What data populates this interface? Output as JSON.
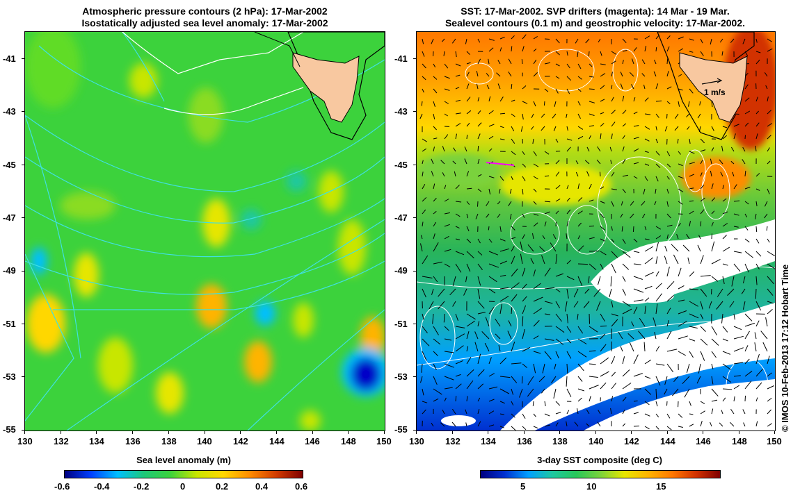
{
  "left_panel": {
    "title_line1": "Atmospheric pressure contours (2 hPa): 17-Mar-2002",
    "title_line2": "Isostatically adjusted sea level anomaly: 17-Mar-2002",
    "colorbar_title": "Sea level anomaly (m)",
    "colorbar_ticks": [
      "-0.6",
      "-0.4",
      "-0.2",
      "0",
      "0.2",
      "0.4",
      "0.6"
    ],
    "colorbar_colors": [
      "#00007f",
      "#0040ff",
      "#00bfff",
      "#1ec878",
      "#3cd23c",
      "#c8e600",
      "#ffd700",
      "#ff8c00",
      "#d23c00",
      "#7f0000"
    ]
  },
  "right_panel": {
    "title_line1": "SST: 17-Mar-2002. SVP drifters (magenta): 14 Mar - 19 Mar.",
    "title_line2": "Sealevel contours (0.1 m) and geostrophic velocity: 17-Mar-2002.",
    "colorbar_title": "3-day SST composite (deg C)",
    "colorbar_ticks": [
      "5",
      "10",
      "15"
    ],
    "colorbar_colors": [
      "#00007f",
      "#0030d0",
      "#00a0ff",
      "#1ec8a0",
      "#28c85a",
      "#7ad23c",
      "#e6e600",
      "#ffb400",
      "#ff7800",
      "#d23200",
      "#7f0000"
    ],
    "velocity_scale_label": "1 m/s",
    "side_credit": "© IMOS 10-Feb-2013 17:12 Hobart Time"
  },
  "axes": {
    "y_ticks": [
      "-41",
      "-43",
      "-45",
      "-47",
      "-49",
      "-51",
      "-53",
      "-55"
    ],
    "x_ticks": [
      "130",
      "132",
      "134",
      "136",
      "138",
      "140",
      "142",
      "144",
      "146",
      "148",
      "150"
    ]
  },
  "colors": {
    "land": "#f8c8a0",
    "sla_background": "#3cd23c",
    "contour_cyan": "#40e0e0",
    "contour_white": "#ffffff",
    "drifter_magenta": "#ff00ff"
  }
}
